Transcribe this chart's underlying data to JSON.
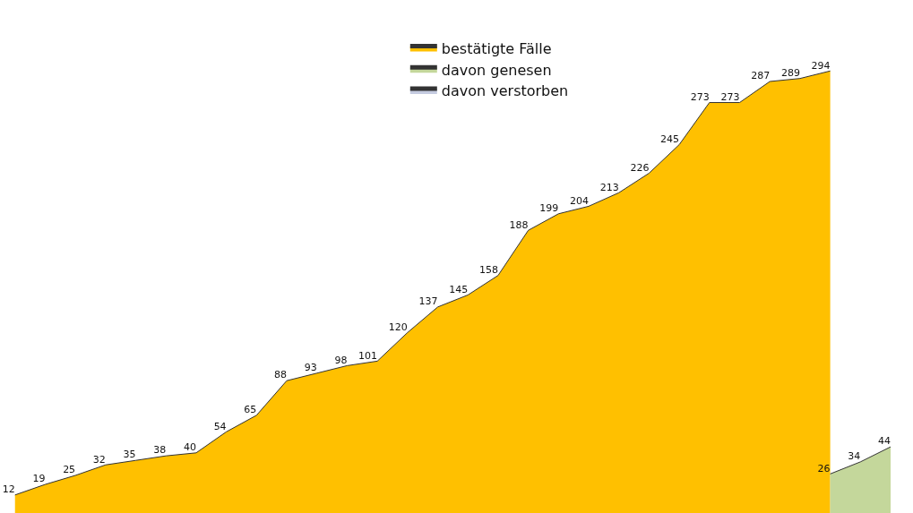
{
  "chart_data": {
    "type": "area",
    "categories": [
      null,
      null,
      null,
      null,
      null,
      null,
      null,
      null,
      null,
      null,
      null,
      null,
      null,
      null,
      null,
      null,
      null,
      null,
      null,
      null,
      null,
      null,
      null,
      null,
      null,
      null,
      null,
      null,
      null,
      null
    ],
    "series": [
      {
        "name": "bestätigte Fälle",
        "color": "#ffc000",
        "values": [
          12,
          19,
          25,
          32,
          35,
          38,
          40,
          54,
          65,
          88,
          93,
          98,
          101,
          120,
          137,
          145,
          158,
          188,
          199,
          204,
          213,
          226,
          245,
          273,
          273,
          287,
          289,
          294,
          null,
          null
        ]
      },
      {
        "name": "davon genesen",
        "color": "#c4d79b",
        "values": [
          null,
          null,
          null,
          null,
          null,
          null,
          null,
          null,
          null,
          null,
          null,
          null,
          null,
          null,
          null,
          null,
          null,
          null,
          null,
          null,
          null,
          null,
          null,
          null,
          null,
          null,
          null,
          26,
          34,
          44
        ]
      },
      {
        "name": "davon verstorben",
        "color": "#c5cbe0",
        "values": [
          null,
          null,
          null,
          null,
          null,
          null,
          null,
          null,
          null,
          null,
          null,
          null,
          null,
          null,
          null,
          null,
          null,
          null,
          null,
          null,
          null,
          null,
          null,
          null,
          null,
          null,
          null,
          null,
          null,
          null
        ]
      }
    ],
    "data_labels": true,
    "legend": "top"
  }
}
